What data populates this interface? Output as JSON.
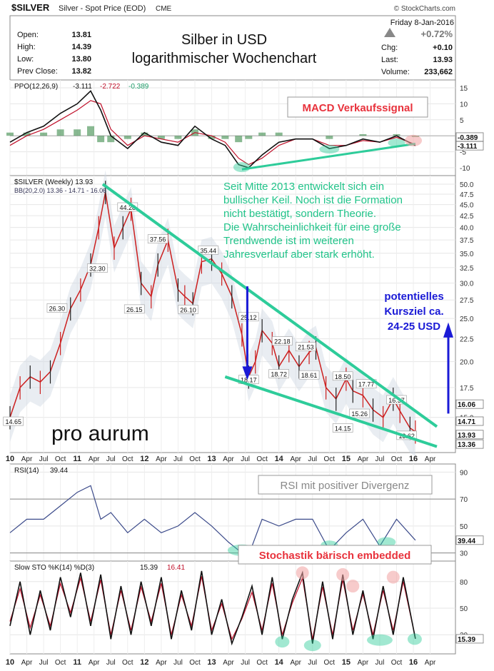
{
  "header": {
    "symbol": "$SILVER",
    "description": "Silver - Spot Price (EOD)",
    "exchange": "CME",
    "copyright": "© StockCharts.com",
    "date": "Friday   8-Jan-2016",
    "change_pct": "+0.72%",
    "stats_left": [
      {
        "label": "Open:",
        "value": "13.81"
      },
      {
        "label": "High:",
        "value": "14.39"
      },
      {
        "label": "Low:",
        "value": "13.80"
      },
      {
        "label": "Prev Close:",
        "value": "13.82"
      }
    ],
    "stats_right": [
      {
        "label": "Chg:",
        "value": "+0.10"
      },
      {
        "label": "Last:",
        "value": "13.93"
      },
      {
        "label": "Volume:",
        "value": "233,662"
      }
    ],
    "title_line1": "Silber in USD",
    "title_line2": "logarithmischer Wochenchart"
  },
  "colors": {
    "trendline": "#2ecc9a",
    "annotation_red": "#e8323c",
    "annotation_green": "#22c48a",
    "annotation_blue": "#1a1ad6",
    "price_down": "#cc1f1f",
    "price_up": "#222222",
    "bollinger_band": "#cfd6e2",
    "ppo_line": "#111111",
    "signal_line": "#c0102a"
  },
  "chart_data": [
    {
      "type": "line",
      "name": "ppo_panel",
      "legend": {
        "name": "PPO(12,26,9)",
        "v1": "-3.111",
        "v2": "-2.722",
        "v3": "-0.389"
      },
      "ylim": [
        -12,
        17
      ],
      "yticks": [
        "15",
        "10",
        "5",
        "0",
        "-5",
        "-10"
      ],
      "ytick_values": [
        15,
        10,
        5,
        0,
        -5,
        -10
      ],
      "last_labels": [
        "-0.389",
        "-3.111"
      ],
      "x": [
        2010.0,
        2010.25,
        2010.5,
        2010.75,
        2011.0,
        2011.2,
        2011.35,
        2011.5,
        2011.75,
        2012.0,
        2012.25,
        2012.5,
        2012.75,
        2013.0,
        2013.2,
        2013.4,
        2013.55,
        2013.75,
        2014.0,
        2014.25,
        2014.5,
        2014.75,
        2015.0,
        2015.25,
        2015.5,
        2015.75,
        2016.03
      ],
      "series": [
        {
          "name": "PPO",
          "values": [
            -2,
            1,
            3,
            7,
            10,
            14,
            8,
            0,
            -4,
            1,
            -2,
            -3,
            3,
            -1,
            -3,
            -9,
            -10,
            -6,
            -2,
            -1,
            -1,
            -4,
            -3,
            -1,
            -2,
            0,
            -3.1
          ]
        },
        {
          "name": "Signal",
          "values": [
            -3,
            0,
            2,
            5,
            8,
            11,
            10,
            2,
            -3,
            0,
            -1,
            -2,
            1,
            0,
            -2,
            -7,
            -9,
            -7,
            -3,
            -1,
            -1,
            -3,
            -3,
            -1.5,
            -2,
            -0.5,
            -2.7
          ]
        },
        {
          "name": "Histogram",
          "values": [
            1,
            1,
            1,
            2,
            2,
            3,
            -2,
            -2,
            -1,
            1,
            -1,
            -1,
            2,
            -1,
            -1,
            -2,
            -1,
            1,
            1,
            0,
            0,
            -1,
            0,
            0.5,
            0,
            0.5,
            -0.4
          ]
        }
      ],
      "annotation": "MACD Verkaufssignal"
    },
    {
      "type": "line",
      "name": "price_panel",
      "legend_main": "$SILVER (Weekly) 13.93",
      "legend_bb": "BB(20,2.0) 13.36 - 14.71 - 16.06",
      "scale": "log",
      "ylim": [
        12.6,
        51.5
      ],
      "yticks": [
        "50.0",
        "47.5",
        "45.0",
        "42.5",
        "40.0",
        "37.5",
        "35.0",
        "32.5",
        "30.0",
        "27.5",
        "25.0",
        "22.5",
        "20.0",
        "17.5",
        "15.0"
      ],
      "ytick_values": [
        50,
        47.5,
        45,
        42.5,
        40,
        37.5,
        35,
        32.5,
        30,
        27.5,
        25,
        22.5,
        20,
        17.5,
        15
      ],
      "last_labels": [
        "16.06",
        "14.71",
        "13.93",
        "13.36"
      ],
      "x": [
        2010.0,
        2010.15,
        2010.3,
        2010.45,
        2010.6,
        2010.75,
        2010.9,
        2011.05,
        2011.2,
        2011.32,
        2011.42,
        2011.55,
        2011.68,
        2011.8,
        2011.95,
        2012.1,
        2012.2,
        2012.35,
        2012.5,
        2012.6,
        2012.72,
        2012.85,
        2013.0,
        2013.15,
        2013.3,
        2013.45,
        2013.55,
        2013.65,
        2013.75,
        2013.9,
        2014.0,
        2014.15,
        2014.3,
        2014.45,
        2014.55,
        2014.7,
        2014.85,
        2015.0,
        2015.1,
        2015.25,
        2015.4,
        2015.55,
        2015.7,
        2015.8,
        2015.95,
        2016.03
      ],
      "series": [
        {
          "name": "Close",
          "values": [
            15,
            17.5,
            18.5,
            18,
            19,
            22,
            26.3,
            29,
            33,
            40,
            48,
            36,
            40,
            44,
            30,
            28,
            33,
            37.5,
            29,
            28,
            27,
            33.5,
            34,
            31.5,
            28,
            23,
            18.5,
            20,
            23.5,
            22,
            19.5,
            21.2,
            19.5,
            21,
            21.5,
            17.5,
            16.5,
            18.3,
            17.2,
            16.8,
            15.6,
            15,
            16.5,
            15.5,
            14.2,
            13.93
          ]
        }
      ],
      "price_labels": [
        {
          "x": 2010.05,
          "y": 14.65,
          "text": "14.65"
        },
        {
          "x": 2010.7,
          "y": 26.3,
          "text": "26.30"
        },
        {
          "x": 2011.3,
          "y": 32.3,
          "text": "32.30"
        },
        {
          "x": 2011.75,
          "y": 44.28,
          "text": "44.28"
        },
        {
          "x": 2011.85,
          "y": 26.15,
          "text": "26.15"
        },
        {
          "x": 2012.2,
          "y": 37.56,
          "text": "37.56"
        },
        {
          "x": 2012.65,
          "y": 26.1,
          "text": "26.10"
        },
        {
          "x": 2012.95,
          "y": 35.44,
          "text": "35.44"
        },
        {
          "x": 2013.55,
          "y": 25.12,
          "text": "25.12"
        },
        {
          "x": 2013.55,
          "y": 18.17,
          "text": "18.17"
        },
        {
          "x": 2014.05,
          "y": 22.18,
          "text": "22.18"
        },
        {
          "x": 2014.0,
          "y": 18.72,
          "text": "18.72"
        },
        {
          "x": 2014.4,
          "y": 21.53,
          "text": "21.53"
        },
        {
          "x": 2014.45,
          "y": 18.61,
          "text": "18.61"
        },
        {
          "x": 2014.95,
          "y": 18.5,
          "text": "18.50"
        },
        {
          "x": 2015.3,
          "y": 17.77,
          "text": "17.77"
        },
        {
          "x": 2014.95,
          "y": 14.15,
          "text": "14.15"
        },
        {
          "x": 2015.2,
          "y": 15.26,
          "text": "15.26"
        },
        {
          "x": 2015.75,
          "y": 16.37,
          "text": "16.37"
        },
        {
          "x": 2015.9,
          "y": 13.62,
          "text": "13.62"
        }
      ],
      "annotation_wedge": "Seit Mitte 2013 entwickelt sich ein bullischer Keil. Noch ist die Formation nicht bestätigt, sondern Theorie. Die Wahrscheinlichkeit für eine große Trendwende ist im weiteren Jahresverlauf aber stark erhöht.",
      "annotation_target": [
        "potentielles",
        "Kursziel ca.",
        "24-25 USD"
      ],
      "watermark": "pro aurum"
    },
    {
      "type": "line",
      "name": "rsi_panel",
      "legend": {
        "name": "RSI(14)",
        "value": "39.44"
      },
      "ylim": [
        25,
        95
      ],
      "yticks": [
        "90",
        "70",
        "50",
        "30"
      ],
      "ytick_values": [
        90,
        70,
        50,
        30
      ],
      "last_labels": [
        "39.44"
      ],
      "x": [
        2010.0,
        2010.25,
        2010.5,
        2010.75,
        2011.0,
        2011.2,
        2011.35,
        2011.5,
        2011.75,
        2012.0,
        2012.25,
        2012.5,
        2012.75,
        2013.0,
        2013.25,
        2013.45,
        2013.6,
        2013.75,
        2014.0,
        2014.25,
        2014.5,
        2014.75,
        2015.0,
        2015.25,
        2015.5,
        2015.75,
        2016.03
      ],
      "series": [
        {
          "name": "RSI",
          "values": [
            45,
            55,
            55,
            65,
            75,
            80,
            55,
            60,
            45,
            55,
            45,
            50,
            60,
            50,
            38,
            30,
            35,
            55,
            50,
            55,
            55,
            32,
            45,
            55,
            35,
            55,
            39.44
          ]
        }
      ],
      "annotation": "RSI mit positiver Divergenz"
    },
    {
      "type": "line",
      "name": "stoch_panel",
      "legend": {
        "name": "Slow STO %K(14) %D(3)",
        "k": "15.39",
        "d": "16.41"
      },
      "ylim": [
        0,
        100
      ],
      "yticks": [
        "80",
        "50",
        "20"
      ],
      "ytick_values": [
        80,
        50,
        20
      ],
      "last_labels": [
        "15.39"
      ],
      "x": [
        2010.0,
        2010.15,
        2010.3,
        2010.45,
        2010.6,
        2010.75,
        2010.9,
        2011.05,
        2011.2,
        2011.35,
        2011.5,
        2011.65,
        2011.8,
        2011.95,
        2012.1,
        2012.25,
        2012.4,
        2012.55,
        2012.7,
        2012.85,
        2013.0,
        2013.15,
        2013.3,
        2013.45,
        2013.6,
        2013.75,
        2013.9,
        2014.05,
        2014.2,
        2014.35,
        2014.5,
        2014.65,
        2014.8,
        2014.95,
        2015.1,
        2015.25,
        2015.4,
        2015.55,
        2015.7,
        2015.85,
        2016.03
      ],
      "series": [
        {
          "name": "%K",
          "values": [
            30,
            80,
            20,
            70,
            25,
            85,
            40,
            90,
            30,
            88,
            15,
            75,
            20,
            80,
            30,
            85,
            15,
            70,
            25,
            92,
            20,
            60,
            10,
            40,
            75,
            20,
            85,
            15,
            60,
            90,
            10,
            80,
            15,
            88,
            20,
            70,
            15,
            75,
            20,
            85,
            15.39
          ]
        },
        {
          "name": "%D",
          "values": [
            35,
            72,
            28,
            65,
            30,
            78,
            45,
            84,
            35,
            82,
            20,
            70,
            25,
            74,
            35,
            78,
            20,
            65,
            30,
            86,
            25,
            55,
            15,
            38,
            68,
            25,
            78,
            20,
            56,
            84,
            15,
            74,
            20,
            82,
            25,
            66,
            20,
            70,
            25,
            80,
            16.41
          ]
        }
      ],
      "annotation": "Stochastik bärisch embedded"
    }
  ],
  "x_axis": {
    "tick_labels": [
      "10",
      "Apr",
      "Jul",
      "Oct",
      "11",
      "Apr",
      "Jul",
      "Oct",
      "12",
      "Apr",
      "Jul",
      "Oct",
      "13",
      "Apr",
      "Jul",
      "Oct",
      "14",
      "Apr",
      "Jul",
      "Oct",
      "15",
      "Apr",
      "Jul",
      "Oct",
      "16",
      "Apr"
    ],
    "tick_positions": [
      2010.0,
      2010.25,
      2010.5,
      2010.75,
      2011.0,
      2011.25,
      2011.5,
      2011.75,
      2012.0,
      2012.25,
      2012.5,
      2012.75,
      2013.0,
      2013.25,
      2013.5,
      2013.75,
      2014.0,
      2014.25,
      2014.5,
      2014.75,
      2015.0,
      2015.25,
      2015.5,
      2015.75,
      2016.0,
      2016.25
    ],
    "year_labels": [
      "10",
      "11",
      "12",
      "13",
      "14",
      "15",
      "16"
    ]
  }
}
